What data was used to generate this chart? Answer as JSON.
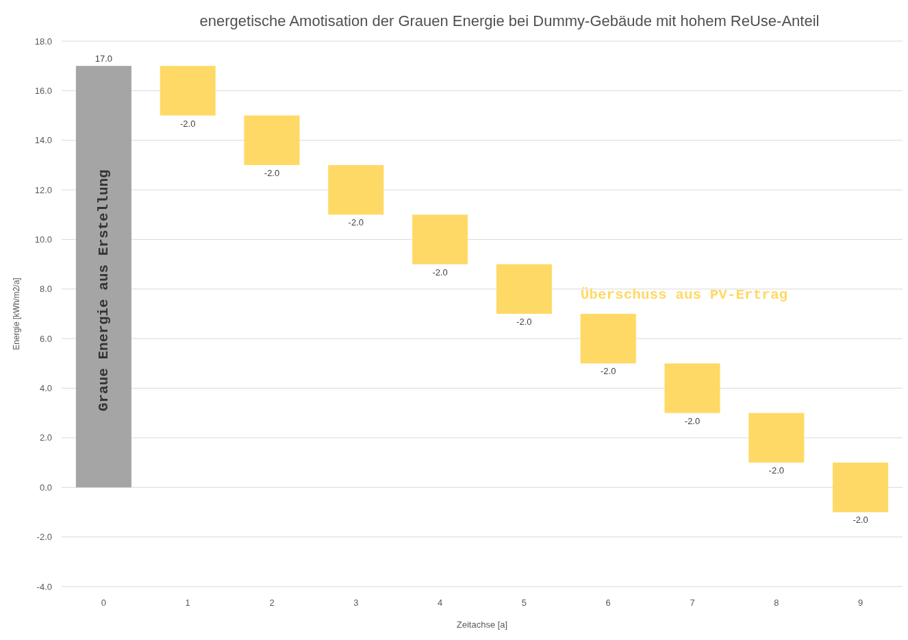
{
  "chart_data": {
    "type": "bar",
    "title": "energetische Amotisation der Grauen Energie bei Dummy-Gebäude mit hohem ReUse-Anteil",
    "xlabel": "Zeitachse [a]",
    "ylabel": "Energie [kWh/m2/a]",
    "categories": [
      "0",
      "1",
      "2",
      "3",
      "4",
      "5",
      "6",
      "7",
      "8",
      "9"
    ],
    "values": [
      17.0,
      -2.0,
      -2.0,
      -2.0,
      -2.0,
      -2.0,
      -2.0,
      -2.0,
      -2.0,
      -2.0
    ],
    "base": [
      0,
      17,
      15,
      13,
      11,
      9,
      7,
      5,
      3,
      1
    ],
    "colors": [
      "#a5a5a5",
      "#ffd966",
      "#ffd966",
      "#ffd966",
      "#ffd966",
      "#ffd966",
      "#ffd966",
      "#ffd966",
      "#ffd966",
      "#ffd966"
    ],
    "value_labels": [
      "17.0",
      "-2.0",
      "-2.0",
      "-2.0",
      "-2.0",
      "-2.0",
      "-2.0",
      "-2.0",
      "-2.0",
      "-2.0"
    ],
    "ylim": [
      -4,
      18
    ],
    "yticks": [
      {
        "value": -4,
        "label": "-4.0"
      },
      {
        "value": -2,
        "label": "-2.0"
      },
      {
        "value": 0,
        "label": "0.0"
      },
      {
        "value": 2,
        "label": "2.0"
      },
      {
        "value": 4,
        "label": "4.0"
      },
      {
        "value": 6,
        "label": "6.0"
      },
      {
        "value": 8,
        "label": "8.0"
      },
      {
        "value": 10,
        "label": "10.0"
      },
      {
        "value": 12,
        "label": "12.0"
      },
      {
        "value": 14,
        "label": "14.0"
      },
      {
        "value": 16,
        "label": "16.0"
      },
      {
        "value": 18,
        "label": "18.0"
      }
    ],
    "grid": "y",
    "annotations": [
      "Graue Energie aus Erstellung",
      "Überschuss aus PV-Ertrag"
    ]
  }
}
